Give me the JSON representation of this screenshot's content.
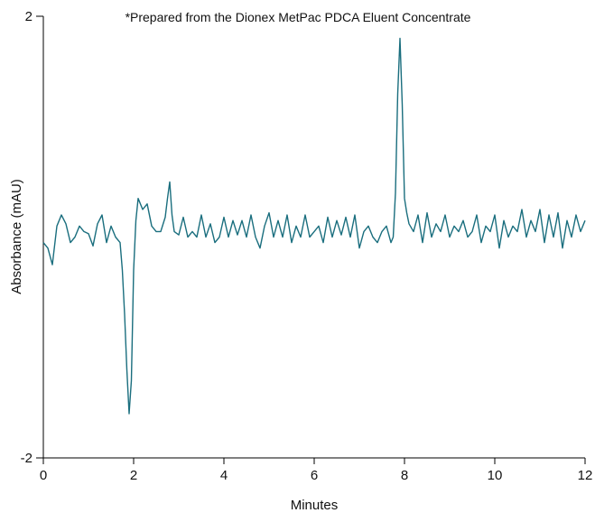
{
  "chart_data": {
    "type": "line",
    "title": "",
    "annotation": "*Prepared from the Dionex MetPac PDCA Eluent Concentrate",
    "xlabel": "Minutes",
    "ylabel": "Absorbance (mAU)",
    "xlim": [
      0,
      12
    ],
    "ylim": [
      -2,
      2
    ],
    "x_ticks": [
      0,
      2,
      4,
      6,
      8,
      10,
      12
    ],
    "y_ticks": [
      -2,
      2
    ],
    "grid": false,
    "series_color": "#1a6e7e",
    "series": [
      {
        "x": [
          0.0,
          0.1,
          0.2,
          0.3,
          0.4,
          0.5,
          0.6,
          0.7,
          0.8,
          0.9,
          1.0,
          1.1,
          1.2,
          1.3,
          1.4,
          1.5,
          1.6,
          1.7,
          1.75,
          1.8,
          1.85,
          1.9,
          1.95,
          2.0,
          2.05,
          2.1,
          2.2,
          2.3,
          2.4,
          2.5,
          2.6,
          2.7,
          2.75,
          2.8,
          2.85,
          2.9,
          3.0,
          3.1,
          3.2,
          3.3,
          3.4,
          3.5,
          3.6,
          3.7,
          3.8,
          3.9,
          4.0,
          4.1,
          4.2,
          4.3,
          4.4,
          4.5,
          4.6,
          4.7,
          4.8,
          4.9,
          5.0,
          5.1,
          5.2,
          5.3,
          5.4,
          5.5,
          5.6,
          5.7,
          5.8,
          5.9,
          6.0,
          6.1,
          6.2,
          6.3,
          6.4,
          6.5,
          6.6,
          6.7,
          6.8,
          6.9,
          7.0,
          7.1,
          7.2,
          7.3,
          7.4,
          7.5,
          7.6,
          7.7,
          7.75,
          7.8,
          7.85,
          7.9,
          7.95,
          8.0,
          8.05,
          8.1,
          8.2,
          8.3,
          8.4,
          8.5,
          8.6,
          8.7,
          8.8,
          8.9,
          9.0,
          9.1,
          9.2,
          9.3,
          9.4,
          9.5,
          9.6,
          9.7,
          9.8,
          9.9,
          10.0,
          10.1,
          10.2,
          10.3,
          10.4,
          10.5,
          10.6,
          10.7,
          10.8,
          10.9,
          11.0,
          11.1,
          11.2,
          11.3,
          11.4,
          11.5,
          11.6,
          11.7,
          11.8,
          11.9,
          12.0
        ],
        "y": [
          -0.05,
          -0.1,
          -0.25,
          0.1,
          0.2,
          0.12,
          -0.05,
          0.0,
          0.1,
          0.05,
          0.03,
          -0.08,
          0.12,
          0.2,
          -0.05,
          0.1,
          0.0,
          -0.05,
          -0.3,
          -0.7,
          -1.2,
          -1.6,
          -1.3,
          -0.3,
          0.15,
          0.35,
          0.25,
          0.3,
          0.1,
          0.05,
          0.05,
          0.18,
          0.35,
          0.5,
          0.2,
          0.05,
          0.02,
          0.18,
          0.0,
          0.05,
          0.0,
          0.2,
          0.0,
          0.12,
          -0.05,
          0.0,
          0.18,
          0.0,
          0.15,
          0.02,
          0.15,
          0.0,
          0.2,
          0.0,
          -0.1,
          0.1,
          0.22,
          0.0,
          0.15,
          0.0,
          0.2,
          -0.05,
          0.1,
          0.0,
          0.2,
          0.0,
          0.05,
          0.1,
          -0.05,
          0.18,
          0.0,
          0.15,
          0.02,
          0.18,
          0.0,
          0.2,
          -0.1,
          0.05,
          0.1,
          0.0,
          -0.05,
          0.05,
          0.1,
          -0.05,
          0.0,
          0.4,
          1.3,
          1.8,
          1.2,
          0.35,
          0.22,
          0.12,
          0.05,
          0.2,
          -0.05,
          0.22,
          0.0,
          0.12,
          0.05,
          0.2,
          0.0,
          0.1,
          0.05,
          0.15,
          0.0,
          0.05,
          0.2,
          -0.05,
          0.1,
          0.05,
          0.2,
          -0.1,
          0.15,
          0.0,
          0.1,
          0.05,
          0.25,
          0.0,
          0.15,
          0.05,
          0.25,
          -0.05,
          0.2,
          0.0,
          0.22,
          -0.1,
          0.15,
          0.0,
          0.2,
          0.05,
          0.15
        ]
      }
    ]
  }
}
